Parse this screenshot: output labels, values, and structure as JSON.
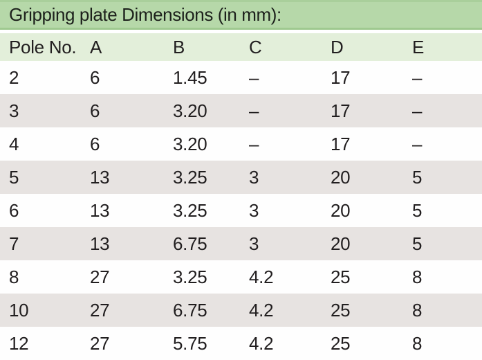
{
  "table": {
    "title": "Gripping plate Dimensions (in mm):",
    "columns": [
      "Pole No.",
      "A",
      "B",
      "C",
      "D",
      "E"
    ],
    "rows": [
      [
        "2",
        "6",
        "1.45",
        "–",
        "17",
        "–"
      ],
      [
        "3",
        "6",
        "3.20",
        "–",
        "17",
        "–"
      ],
      [
        "4",
        "6",
        "3.20",
        "–",
        "17",
        "–"
      ],
      [
        "5",
        "13",
        "3.25",
        "3",
        "20",
        "5"
      ],
      [
        "6",
        "13",
        "3.25",
        "3",
        "20",
        "5"
      ],
      [
        "7",
        "13",
        "6.75",
        "3",
        "20",
        "5"
      ],
      [
        "8",
        "27",
        "3.25",
        "4.2",
        "25",
        "8"
      ],
      [
        "10",
        "27",
        "6.75",
        "4.2",
        "25",
        "8"
      ],
      [
        "12",
        "27",
        "5.75",
        "4.2",
        "25",
        "8"
      ]
    ]
  },
  "colors": {
    "title_band_green": "#b6d8a9",
    "title_band_edge_green": "#9fc990",
    "header_band_green": "#e3efda",
    "row_gray": "#e7e3e1",
    "row_white": "#fefefe",
    "text": "#211e1f"
  }
}
